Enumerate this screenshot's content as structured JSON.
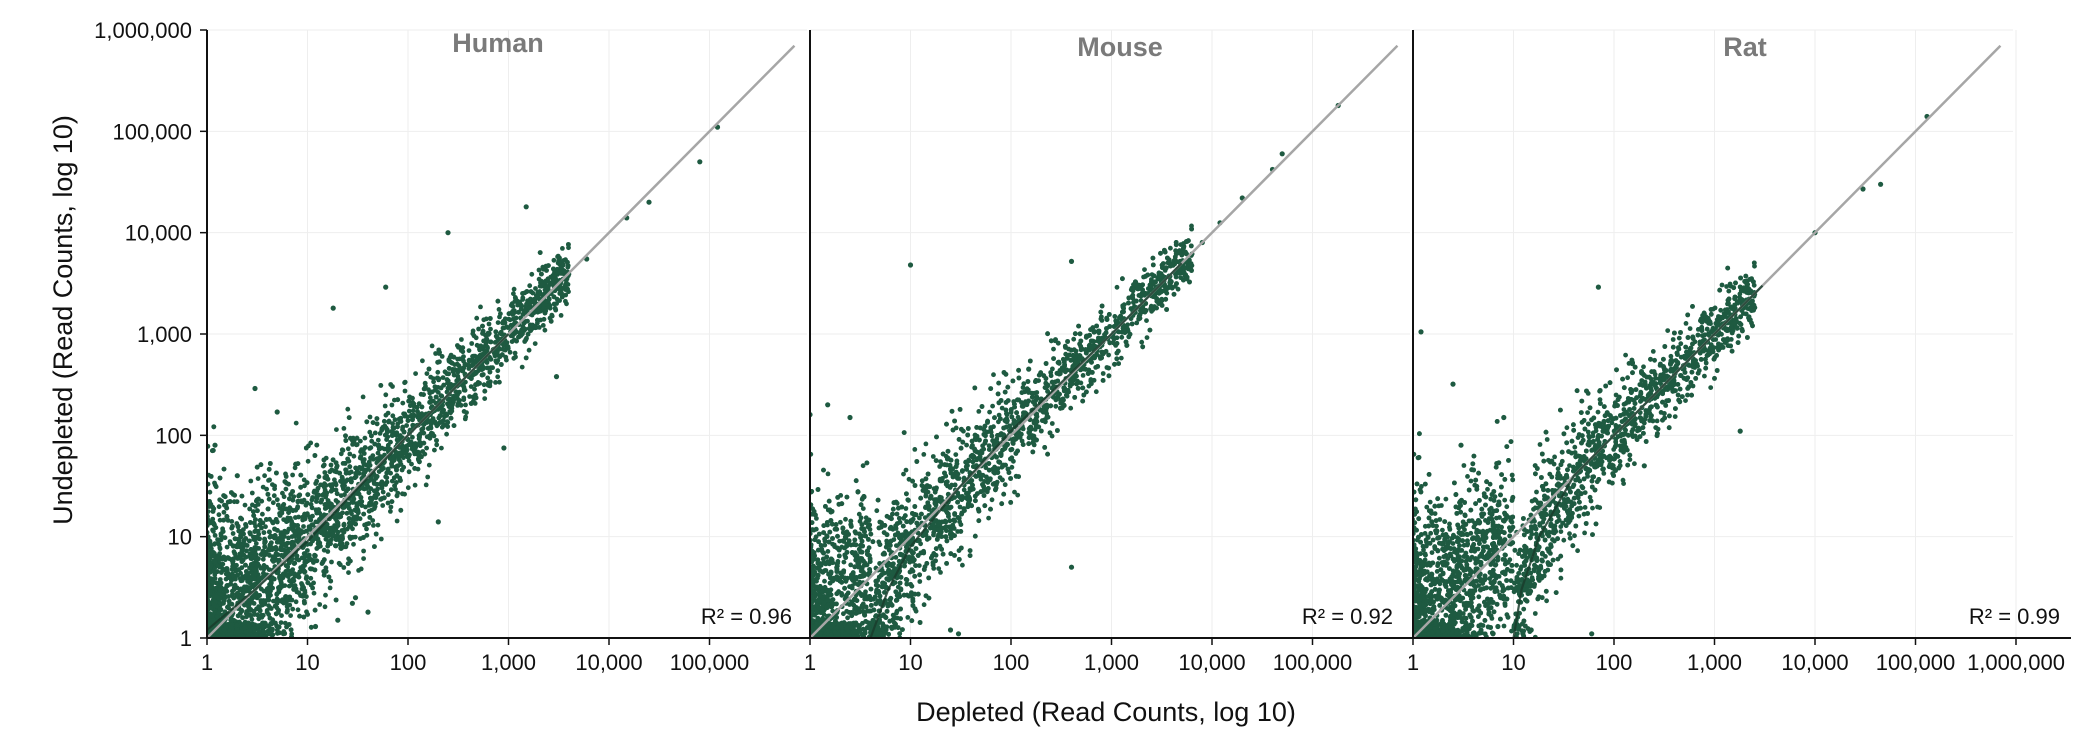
{
  "chart_data": {
    "type": "scatter",
    "xlabel": "Depleted (Read Counts, log 10)",
    "ylabel": "Undepleted (Read Counts, log 10)",
    "xscale": "log10",
    "yscale": "log10",
    "xlim": [
      1,
      1000000
    ],
    "ylim": [
      1,
      1000000
    ],
    "x_ticks": [
      1,
      10,
      100,
      1000,
      10000,
      100000,
      1000000
    ],
    "x_tick_labels": [
      "1",
      "10",
      "100",
      "1,000",
      "10,000",
      "100,000",
      "1,000,000"
    ],
    "y_ticks": [
      1,
      10,
      100,
      1000,
      10000,
      100000,
      1000000
    ],
    "y_tick_labels": [
      "1",
      "10",
      "100",
      "1,000",
      "10,000",
      "100,000",
      "1,000,000"
    ],
    "grid": true,
    "point_color": "#1e5a41",
    "identity_line_color": "#a6a6a6",
    "fit_line_color": "#1a3d2d",
    "panels": [
      {
        "title": "Human",
        "r2_label": "R² = 0.96",
        "r2": 0.96,
        "identity_line": [
          [
            1,
            1
          ],
          [
            700000,
            700000
          ]
        ],
        "fit_curve": [
          [
            1,
            1.2
          ],
          [
            3,
            3
          ],
          [
            10,
            9
          ],
          [
            100,
            100
          ],
          [
            1000,
            1000
          ]
        ],
        "outliers": [
          [
            120000,
            110000
          ],
          [
            80000,
            50000
          ],
          [
            1500,
            18000
          ],
          [
            250,
            10000
          ],
          [
            60,
            2900
          ],
          [
            18,
            1800
          ],
          [
            200,
            14
          ],
          [
            900,
            75
          ],
          [
            3000,
            380
          ],
          [
            15000,
            14000
          ],
          [
            5,
            170
          ],
          [
            3,
            290
          ],
          [
            28,
            2.2
          ],
          [
            30,
            2.5
          ],
          [
            1.2,
            80
          ],
          [
            2,
            40
          ],
          [
            12,
            1.3
          ],
          [
            20,
            1.5
          ],
          [
            6000,
            5500
          ],
          [
            25000,
            20000
          ],
          [
            40,
            1.8
          ]
        ]
      },
      {
        "title": "Mouse",
        "r2_label": "R² = 0.92",
        "r2": 0.92,
        "identity_line": [
          [
            1,
            1
          ],
          [
            700000,
            700000
          ]
        ],
        "fit_curve": [
          [
            4,
            1
          ],
          [
            6,
            3
          ],
          [
            10,
            8
          ],
          [
            30,
            30
          ],
          [
            100,
            110
          ],
          [
            1000,
            1000
          ],
          [
            5000,
            5000
          ]
        ],
        "outliers": [
          [
            180000,
            180000
          ],
          [
            50000,
            60000
          ],
          [
            40000,
            42000
          ],
          [
            20000,
            22000
          ],
          [
            12000,
            12500
          ],
          [
            400,
            5200
          ],
          [
            10,
            4800
          ],
          [
            150,
            450
          ],
          [
            400,
            5
          ],
          [
            1,
            160
          ],
          [
            1.5,
            200
          ],
          [
            2.5,
            150
          ],
          [
            25,
            1.2
          ],
          [
            30,
            1.1
          ],
          [
            5,
            1.1
          ],
          [
            3500,
            4500
          ],
          [
            8000,
            8000
          ]
        ]
      },
      {
        "title": "Rat",
        "r2_label": "R² = 0.99",
        "r2": 0.99,
        "identity_line": [
          [
            1,
            1
          ],
          [
            700000,
            700000
          ]
        ],
        "fit_curve": [
          [
            10,
            1
          ],
          [
            12,
            3
          ],
          [
            18,
            10
          ],
          [
            40,
            40
          ],
          [
            100,
            100
          ],
          [
            1000,
            1000
          ],
          [
            3000,
            3000
          ]
        ],
        "outliers": [
          [
            130000,
            140000
          ],
          [
            45000,
            30000
          ],
          [
            30000,
            27000
          ],
          [
            10000,
            10000
          ],
          [
            1.2,
            1050
          ],
          [
            2.5,
            320
          ],
          [
            70,
            2900
          ],
          [
            1800,
            110
          ],
          [
            200,
            50
          ],
          [
            15,
            1.2
          ],
          [
            60,
            1.1
          ],
          [
            8,
            150
          ],
          [
            3,
            80
          ],
          [
            20,
            15
          ],
          [
            500,
            600
          ],
          [
            7,
            1.3
          ]
        ]
      }
    ]
  }
}
